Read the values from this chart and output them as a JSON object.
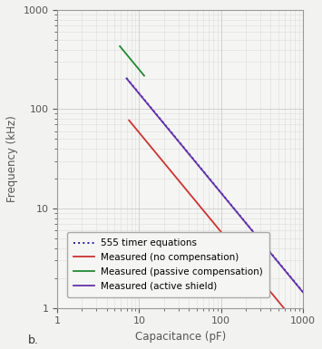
{
  "title": "",
  "xlabel": "Capacitance (pF)",
  "ylabel": "Frequency (kHz)",
  "xlim": [
    1,
    1000
  ],
  "ylim": [
    1,
    1000
  ],
  "label_b": "b.",
  "background_color": "#f2f2f0",
  "plot_bg_color": "#f5f5f3",
  "grid_color_major": "#cccccc",
  "grid_color_minor": "#dddddd",
  "legend": [
    {
      "label": "555 timer equations",
      "color": "#2222aa",
      "linestyle": "dotted",
      "lw": 1.4
    },
    {
      "label": "Measured (no compensation)",
      "color": "#cc3333",
      "linestyle": "solid",
      "lw": 1.3
    },
    {
      "label": "Measured (passive compensation)",
      "color": "#228833",
      "linestyle": "solid",
      "lw": 1.3
    },
    {
      "label": "Measured (active shield)",
      "color": "#6633aa",
      "linestyle": "solid",
      "lw": 1.3
    }
  ],
  "series_555_k": 1440.0,
  "series_555_C_start": 7.0,
  "series_555_C_end": 1000.0,
  "series_no_comp_k": 580.0,
  "series_no_comp_C_start": 7.5,
  "series_no_comp_C_end": 1000.0,
  "series_passive_C_start": 5.8,
  "series_passive_C_end": 11.5,
  "series_passive_k": 2500.0,
  "series_active_k": 1430.0,
  "series_active_C_start": 7.0,
  "series_active_C_end": 1000.0,
  "spine_color": "#999999",
  "tick_color": "#555555",
  "label_fontsize": 8.5,
  "tick_fontsize": 8
}
